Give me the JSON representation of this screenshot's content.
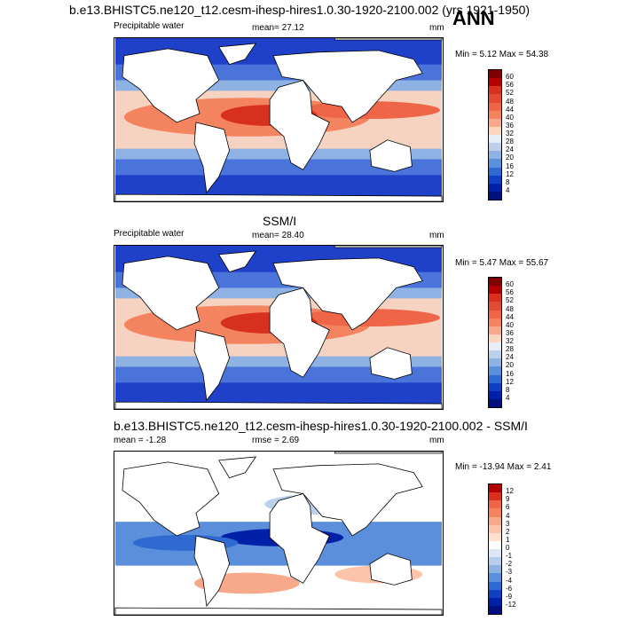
{
  "season_label": "ANN",
  "panels": [
    {
      "id": "model",
      "title": "b.e13.BHISTC5.ne120_t12.cesm-ihesp-hires1.0.30-1920-2100.002 (yrs 1921-1950)",
      "left_label": "Precipitable water",
      "center_label": "mean=  27.12",
      "units": "mm",
      "minmax": "Min =   5.12 Max =  54.38",
      "colorbar": {
        "labels": [
          "60",
          "56",
          "52",
          "48",
          "44",
          "40",
          "36",
          "32",
          "28",
          "24",
          "20",
          "16",
          "12",
          "8",
          "4"
        ],
        "colors": [
          "#7f0000",
          "#b30000",
          "#d7301f",
          "#e34a33",
          "#ef6548",
          "#f4845f",
          "#f9a98b",
          "#fcd5bf",
          "#e8eef7",
          "#bcd0ec",
          "#8eb2e3",
          "#5c8fdb",
          "#2f6ad2",
          "#0f40c4",
          "#0020a8",
          "#00107f"
        ]
      }
    },
    {
      "id": "obs",
      "title": "SSM/I",
      "left_label": "Precipitable water",
      "center_label": "mean=  28.40",
      "units": "mm",
      "minmax": "Min =   5.47 Max =  55.67",
      "colorbar": {
        "labels": [
          "60",
          "56",
          "52",
          "48",
          "44",
          "40",
          "36",
          "32",
          "28",
          "24",
          "20",
          "16",
          "12",
          "8",
          "4"
        ],
        "colors": [
          "#7f0000",
          "#b30000",
          "#d7301f",
          "#e34a33",
          "#ef6548",
          "#f4845f",
          "#f9a98b",
          "#fcd5bf",
          "#e8eef7",
          "#bcd0ec",
          "#8eb2e3",
          "#5c8fdb",
          "#2f6ad2",
          "#0f40c4",
          "#0020a8",
          "#00107f"
        ]
      }
    },
    {
      "id": "diff",
      "title": "b.e13.BHISTC5.ne120_t12.cesm-ihesp-hires1.0.30-1920-2100.002 - SSM/I",
      "left_label": "mean =  -1.28",
      "center_label": "rmse =   2.69",
      "units": "mm",
      "minmax": "Min = -13.94 Max =   2.41",
      "colorbar": {
        "labels": [
          "12",
          "9",
          "6",
          "4",
          "3",
          "2",
          "1",
          "0",
          "-1",
          "-2",
          "-3",
          "-4",
          "-6",
          "-9",
          "-12"
        ],
        "colors": [
          "#b30000",
          "#d7301f",
          "#ef6548",
          "#f4845f",
          "#f9a98b",
          "#fcc5ab",
          "#fde2d4",
          "#ffffff",
          "#dde6f5",
          "#b8cdee",
          "#8eb2e3",
          "#5c8fdb",
          "#2f6ad2",
          "#0f40c4",
          "#0020a8",
          "#00107f"
        ]
      }
    }
  ]
}
